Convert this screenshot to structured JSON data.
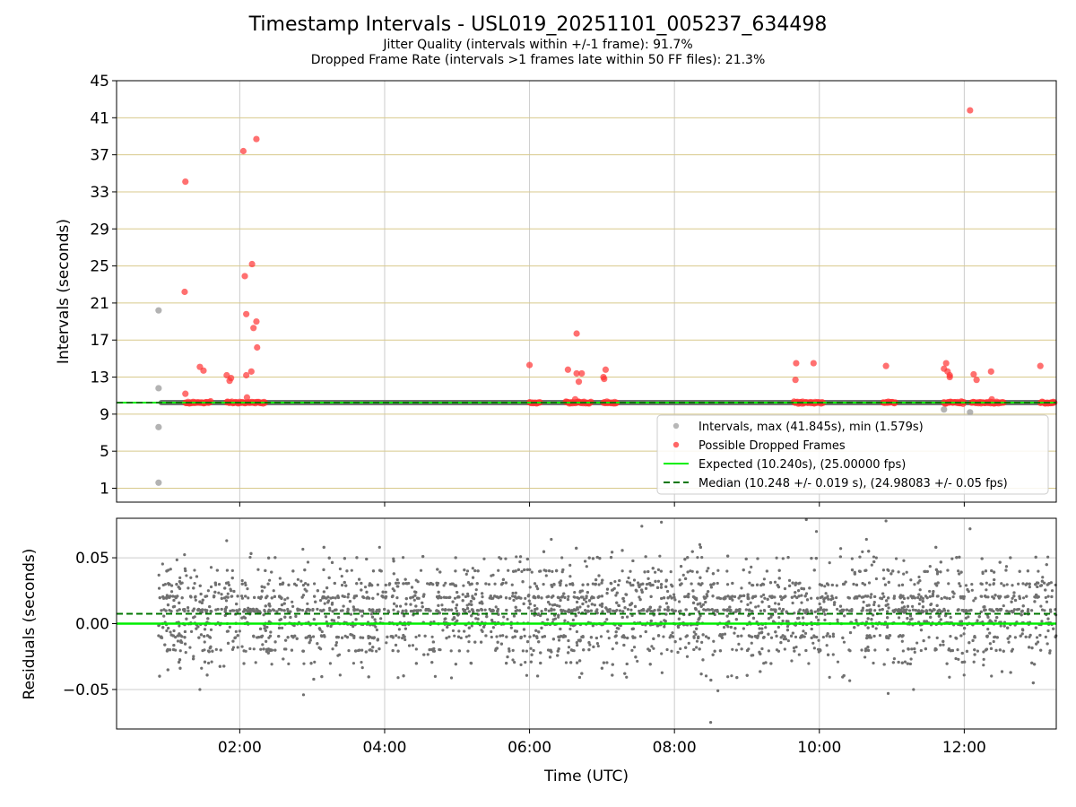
{
  "figure": {
    "title": "Timestamp Intervals - USL019_20251101_005237_634498",
    "subtitle_jitter": "Jitter Quality (intervals within +/-1 frame): 91.7%",
    "subtitle_dropped": "Dropped Frame Rate (intervals >1 frames late within 50 FF files): 21.3%"
  },
  "colors": {
    "interval_points": "#999999",
    "dropped_points": "#ff3333",
    "expected_line": "#00ee00",
    "median_line": "#007700",
    "residual_points": "#707070",
    "hgrid_top": "#d8c98c",
    "grid": "#cccccc",
    "median_band": "#666666"
  },
  "chart_data": [
    {
      "type": "scatter",
      "panel": "intervals",
      "xlabel": "",
      "ylabel": "Intervals (seconds)",
      "xlim_hours": [
        0.3,
        13.27
      ],
      "ylim": [
        -0.5,
        45
      ],
      "yticks": [
        1,
        5,
        9,
        13,
        17,
        21,
        25,
        29,
        33,
        37,
        41,
        45
      ],
      "xticks_hours": [
        2,
        4,
        6,
        8,
        10,
        12
      ],
      "xtick_labels": [
        "02:00",
        "04:00",
        "06:00",
        "08:00",
        "10:00",
        "12:00"
      ],
      "legend": {
        "position": "lower-right",
        "entries": [
          "Intervals, max (41.845s), min (1.579s)",
          "Possible Dropped Frames",
          "Expected (10.240s), (25.00000 fps)",
          "Median (10.248 +/- 0.019 s), (24.98083 +/- 0.05 fps)"
        ]
      },
      "expected_value": 10.24,
      "median_value": 10.248,
      "interval_range_hours": [
        0.88,
        13.27
      ],
      "interval_outliers": [
        {
          "x": 0.88,
          "y": 20.2
        },
        {
          "x": 0.88,
          "y": 11.8
        },
        {
          "x": 0.88,
          "y": 7.6
        },
        {
          "x": 0.88,
          "y": 1.6
        },
        {
          "x": 11.72,
          "y": 9.5
        },
        {
          "x": 12.08,
          "y": 9.2
        }
      ],
      "dropped_frame_segments": [
        {
          "x0": 1.25,
          "x1": 1.6
        },
        {
          "x0": 1.82,
          "x1": 2.35
        },
        {
          "x0": 6.0,
          "x1": 6.15
        },
        {
          "x0": 6.5,
          "x1": 6.85
        },
        {
          "x0": 7.02,
          "x1": 7.2
        },
        {
          "x0": 9.65,
          "x1": 9.85
        },
        {
          "x0": 9.87,
          "x1": 10.05
        },
        {
          "x0": 10.88,
          "x1": 11.05
        },
        {
          "x0": 11.72,
          "x1": 12.0
        },
        {
          "x0": 12.1,
          "x1": 12.55
        },
        {
          "x0": 13.05,
          "x1": 13.25
        }
      ],
      "dropped_frames": [
        {
          "x": 1.25,
          "y": 34.1
        },
        {
          "x": 1.24,
          "y": 22.2
        },
        {
          "x": 1.25,
          "y": 11.2
        },
        {
          "x": 1.45,
          "y": 14.1
        },
        {
          "x": 1.5,
          "y": 13.7
        },
        {
          "x": 1.82,
          "y": 13.2
        },
        {
          "x": 1.86,
          "y": 12.6
        },
        {
          "x": 1.88,
          "y": 12.9
        },
        {
          "x": 2.05,
          "y": 37.4
        },
        {
          "x": 2.23,
          "y": 38.7
        },
        {
          "x": 2.07,
          "y": 23.9
        },
        {
          "x": 2.17,
          "y": 25.2
        },
        {
          "x": 2.09,
          "y": 19.8
        },
        {
          "x": 2.23,
          "y": 19.0
        },
        {
          "x": 2.19,
          "y": 18.3
        },
        {
          "x": 2.24,
          "y": 16.2
        },
        {
          "x": 2.16,
          "y": 13.6
        },
        {
          "x": 2.09,
          "y": 13.2
        },
        {
          "x": 2.1,
          "y": 10.8
        },
        {
          "x": 6.0,
          "y": 14.3
        },
        {
          "x": 6.53,
          "y": 13.8
        },
        {
          "x": 6.65,
          "y": 17.7
        },
        {
          "x": 6.65,
          "y": 13.4
        },
        {
          "x": 6.72,
          "y": 13.4
        },
        {
          "x": 6.68,
          "y": 12.5
        },
        {
          "x": 6.63,
          "y": 10.6
        },
        {
          "x": 7.05,
          "y": 13.8
        },
        {
          "x": 7.02,
          "y": 13.0
        },
        {
          "x": 7.03,
          "y": 12.8
        },
        {
          "x": 9.68,
          "y": 14.5
        },
        {
          "x": 9.67,
          "y": 12.7
        },
        {
          "x": 9.92,
          "y": 14.5
        },
        {
          "x": 10.92,
          "y": 14.2
        },
        {
          "x": 11.72,
          "y": 13.9
        },
        {
          "x": 11.75,
          "y": 14.5
        },
        {
          "x": 11.77,
          "y": 13.6
        },
        {
          "x": 11.8,
          "y": 13.2
        },
        {
          "x": 11.8,
          "y": 13.0
        },
        {
          "x": 12.08,
          "y": 41.8
        },
        {
          "x": 12.13,
          "y": 13.3
        },
        {
          "x": 12.17,
          "y": 12.7
        },
        {
          "x": 12.37,
          "y": 13.6
        },
        {
          "x": 12.38,
          "y": 10.6
        },
        {
          "x": 13.05,
          "y": 14.2
        }
      ]
    },
    {
      "type": "scatter",
      "panel": "residuals",
      "xlabel": "Time (UTC)",
      "ylabel": "Residuals (seconds)",
      "xlim_hours": [
        0.3,
        13.27
      ],
      "ylim": [
        -0.08,
        0.08
      ],
      "yticks": [
        0.05,
        0.0,
        -0.05
      ],
      "ytick_labels": [
        "0.05",
        "0.00",
        "−0.05"
      ],
      "expected_residual": 0.0,
      "median_residual": 0.0075,
      "residual_std": 0.019,
      "residual_sample_count": 4200,
      "residual_range_hours": [
        0.88,
        13.27
      ],
      "residual_outliers": [
        {
          "x": 2.88,
          "y": -0.054
        },
        {
          "x": 1.45,
          "y": -0.05
        },
        {
          "x": 8.5,
          "y": -0.075
        },
        {
          "x": 8.6,
          "y": -0.051
        },
        {
          "x": 10.95,
          "y": -0.053
        },
        {
          "x": 11.3,
          "y": -0.05
        },
        {
          "x": 9.82,
          "y": 0.079
        },
        {
          "x": 10.92,
          "y": 0.078
        },
        {
          "x": 7.82,
          "y": 0.077
        },
        {
          "x": 12.08,
          "y": 0.072
        },
        {
          "x": 7.55,
          "y": 0.074
        },
        {
          "x": 1.82,
          "y": 0.063
        },
        {
          "x": 6.3,
          "y": 0.064
        },
        {
          "x": 9.96,
          "y": 0.07
        },
        {
          "x": 8.35,
          "y": 0.06
        },
        {
          "x": 10.65,
          "y": 0.064
        }
      ]
    }
  ]
}
